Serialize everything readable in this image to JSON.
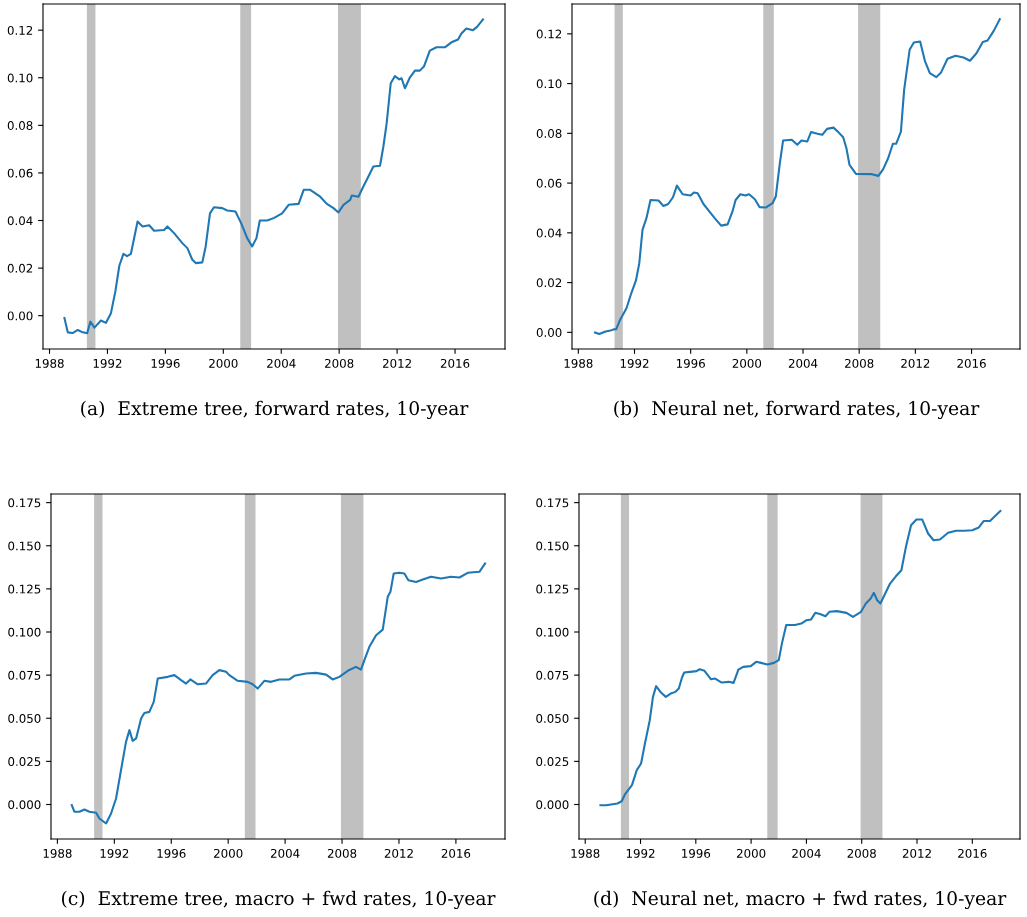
{
  "chart_data": [
    {
      "type": "line",
      "xlabel": "(a)  Extreme tree, forward rates, 10-year",
      "xlim": [
        1987.55,
        2019.45
      ],
      "xticks": [
        1988,
        1992,
        1996,
        2000,
        2004,
        2008,
        2012,
        2016
      ],
      "ylim": [
        -0.014,
        0.131
      ],
      "yticks": [
        {
          "value": 0,
          "label": "0.00"
        },
        {
          "value": 0.02,
          "label": "0.02"
        },
        {
          "value": 0.04,
          "label": "0.04"
        },
        {
          "value": 0.06,
          "label": "0.06"
        },
        {
          "value": 0.08,
          "label": "0.08"
        },
        {
          "value": 0.1,
          "label": "0.10"
        },
        {
          "value": 0.12,
          "label": "0.12"
        }
      ],
      "grid": false,
      "legend": false,
      "bands": [
        {
          "axis": "x",
          "from": 1990.58,
          "to": 1991.17,
          "color": "#c0c0c0"
        },
        {
          "axis": "x",
          "from": 2001.17,
          "to": 2001.92,
          "color": "#c0c0c0"
        },
        {
          "axis": "x",
          "from": 2007.92,
          "to": 2009.5,
          "color": "#c0c0c0"
        }
      ],
      "series": [
        {
          "color": "#1f77b4",
          "x": [
            1989.03,
            1989.26,
            1989.6,
            1989.95,
            1990.3,
            1990.6,
            1990.82,
            1991.1,
            1991.55,
            1991.9,
            1992.24,
            1992.54,
            1992.82,
            1993.1,
            1993.35,
            1993.62,
            1994.08,
            1994.42,
            1994.88,
            1995.22,
            1995.91,
            1996.14,
            1996.6,
            1997.17,
            1997.52,
            1997.86,
            1998.1,
            1998.55,
            1998.78,
            1999.08,
            1999.35,
            1999.93,
            2000.27,
            2000.84,
            2001.23,
            2001.65,
            2001.99,
            2002.29,
            2002.52,
            2003.02,
            2003.48,
            2004.06,
            2004.51,
            2005.2,
            2005.55,
            2006.0,
            2006.69,
            2007.15,
            2007.61,
            2007.95,
            2008.3,
            2008.76,
            2008.87,
            2009.33,
            2009.67,
            2010.02,
            2010.36,
            2010.82,
            2011.05,
            2011.28,
            2011.56,
            2011.85,
            2012.15,
            2012.31,
            2012.54,
            2012.89,
            2013.23,
            2013.57,
            2013.85,
            2014.26,
            2014.72,
            2015.3,
            2015.75,
            2016.21,
            2016.44,
            2016.78,
            2017.24,
            2017.52,
            2017.93
          ],
          "values": [
            -0.001,
            -0.007,
            -0.0073,
            -0.006,
            -0.007,
            -0.0074,
            -0.0025,
            -0.005,
            -0.002,
            -0.003,
            0.001,
            0.01,
            0.021,
            0.026,
            0.025,
            0.026,
            0.0396,
            0.0375,
            0.038,
            0.0357,
            0.036,
            0.0375,
            0.0347,
            0.0305,
            0.0284,
            0.0235,
            0.0221,
            0.0224,
            0.029,
            0.043,
            0.0456,
            0.0452,
            0.0442,
            0.0438,
            0.0389,
            0.0326,
            0.0291,
            0.0326,
            0.04,
            0.04,
            0.041,
            0.043,
            0.0466,
            0.047,
            0.0529,
            0.0529,
            0.05,
            0.047,
            0.0452,
            0.0434,
            0.0466,
            0.0487,
            0.0505,
            0.05,
            0.0543,
            0.0585,
            0.0627,
            0.063,
            0.071,
            0.0809,
            0.0977,
            0.1007,
            0.0993,
            0.0998,
            0.0956,
            0.1002,
            0.103,
            0.103,
            0.1047,
            0.1114,
            0.1128,
            0.1128,
            0.1149,
            0.1161,
            0.1186,
            0.1207,
            0.12,
            0.1214,
            0.1245
          ]
        }
      ]
    },
    {
      "type": "line",
      "xlabel": "(b)  Neural net, forward rates, 10-year",
      "xlim": [
        1987.55,
        2019.45
      ],
      "xticks": [
        1988,
        1992,
        1996,
        2000,
        2004,
        2008,
        2012,
        2016
      ],
      "ylim": [
        -0.0067,
        0.132
      ],
      "yticks": [
        {
          "value": 0,
          "label": "0.00"
        },
        {
          "value": 0.02,
          "label": "0.02"
        },
        {
          "value": 0.04,
          "label": "0.04"
        },
        {
          "value": 0.06,
          "label": "0.06"
        },
        {
          "value": 0.08,
          "label": "0.08"
        },
        {
          "value": 0.1,
          "label": "0.10"
        },
        {
          "value": 0.12,
          "label": "0.12"
        }
      ],
      "grid": false,
      "legend": false,
      "bands": [
        {
          "axis": "x",
          "from": 1990.58,
          "to": 1991.17,
          "color": "#c0c0c0"
        },
        {
          "axis": "x",
          "from": 2001.17,
          "to": 2001.92,
          "color": "#c0c0c0"
        },
        {
          "axis": "x",
          "from": 2007.92,
          "to": 2009.5,
          "color": "#c0c0c0"
        }
      ],
      "series": [
        {
          "color": "#1f77b4",
          "x": [
            1989.19,
            1989.49,
            1989.94,
            1990.29,
            1990.51,
            1990.7,
            1990.97,
            1991.43,
            1991.77,
            1992.11,
            1992.34,
            1992.57,
            1992.85,
            1993.14,
            1993.71,
            1994.06,
            1994.4,
            1994.74,
            1995.02,
            1995.43,
            1996.0,
            1996.23,
            1996.5,
            1996.91,
            1997.37,
            1997.71,
            1998.17,
            1998.63,
            1998.97,
            1999.2,
            1999.54,
            1999.89,
            2000.16,
            2000.57,
            2000.91,
            2001.37,
            2001.83,
            2002.06,
            2002.35,
            2002.58,
            2003.2,
            2003.59,
            2003.89,
            2004.3,
            2004.57,
            2005.03,
            2005.37,
            2005.71,
            2006.17,
            2006.51,
            2006.86,
            2007.09,
            2007.31,
            2007.77,
            2008.91,
            2009.37,
            2009.71,
            2010.06,
            2010.4,
            2010.63,
            2010.97,
            2011.2,
            2011.59,
            2011.89,
            2012.34,
            2012.69,
            2013.03,
            2013.49,
            2013.83,
            2014.29,
            2014.86,
            2015.43,
            2015.89,
            2016.35,
            2016.8,
            2017.14,
            2017.6,
            2018.01
          ],
          "values": [
            -0.0001,
            -0.0007,
            0.0003,
            0.0007,
            0.0012,
            0.0013,
            0.005,
            0.0097,
            0.0157,
            0.021,
            0.0278,
            0.0412,
            0.0459,
            0.0532,
            0.053,
            0.0508,
            0.0516,
            0.0543,
            0.059,
            0.0555,
            0.055,
            0.0562,
            0.0559,
            0.0516,
            0.0483,
            0.0459,
            0.0429,
            0.0434,
            0.0485,
            0.0532,
            0.0555,
            0.055,
            0.0555,
            0.0535,
            0.0503,
            0.0502,
            0.0519,
            0.0546,
            0.068,
            0.0771,
            0.0774,
            0.0754,
            0.0771,
            0.0767,
            0.0805,
            0.0798,
            0.0794,
            0.0818,
            0.0823,
            0.0805,
            0.0784,
            0.074,
            0.0673,
            0.0637,
            0.0636,
            0.0629,
            0.0656,
            0.07,
            0.0758,
            0.0758,
            0.0807,
            0.0975,
            0.1136,
            0.1165,
            0.1169,
            0.1089,
            0.1042,
            0.1026,
            0.1045,
            0.11,
            0.1112,
            0.1105,
            0.1092,
            0.1122,
            0.1167,
            0.1173,
            0.1214,
            0.1259
          ]
        }
      ]
    },
    {
      "type": "line",
      "xlabel": "(c)  Extreme tree, macro + fwd rates, 10-year",
      "xlim": [
        1987.55,
        2019.45
      ],
      "xticks": [
        1988,
        1992,
        1996,
        2000,
        2004,
        2008,
        2012,
        2016
      ],
      "ylim": [
        -0.02,
        0.18
      ],
      "yticks": [
        {
          "value": 0,
          "label": "0.000"
        },
        {
          "value": 0.025,
          "label": "0.025"
        },
        {
          "value": 0.05,
          "label": "0.050"
        },
        {
          "value": 0.075,
          "label": "0.075"
        },
        {
          "value": 0.1,
          "label": "0.100"
        },
        {
          "value": 0.125,
          "label": "0.125"
        },
        {
          "value": 0.15,
          "label": "0.150"
        },
        {
          "value": 0.175,
          "label": "0.175"
        }
      ],
      "grid": false,
      "legend": false,
      "bands": [
        {
          "axis": "x",
          "from": 1990.58,
          "to": 1991.17,
          "color": "#c0c0c0"
        },
        {
          "axis": "x",
          "from": 2001.17,
          "to": 2001.92,
          "color": "#c0c0c0"
        },
        {
          "axis": "x",
          "from": 2007.92,
          "to": 2009.5,
          "color": "#c0c0c0"
        }
      ],
      "series": [
        {
          "color": "#1f77b4",
          "x": [
            1989.01,
            1989.19,
            1989.55,
            1989.9,
            1990.25,
            1990.72,
            1990.95,
            1991.42,
            1991.77,
            1992.12,
            1992.47,
            1992.82,
            1993.06,
            1993.29,
            1993.53,
            1993.88,
            1994.11,
            1994.46,
            1994.77,
            1995.05,
            1995.75,
            1996.22,
            1996.69,
            1997.04,
            1997.34,
            1997.86,
            1998.44,
            1998.91,
            1999.38,
            1999.85,
            2000.08,
            2000.67,
            2001.37,
            2001.72,
            2002.07,
            2002.54,
            2003.01,
            2003.6,
            2004.3,
            2004.65,
            2005.47,
            2006.17,
            2006.88,
            2007.34,
            2007.81,
            2008.4,
            2008.98,
            2009.33,
            2009.57,
            2009.92,
            2010.39,
            2010.86,
            2011.21,
            2011.4,
            2011.63,
            2012.03,
            2012.38,
            2012.66,
            2013.2,
            2013.67,
            2014.25,
            2014.96,
            2015.66,
            2016.25,
            2016.83,
            2017.65,
            2018.05
          ],
          "values": [
            -0.0004,
            -0.0042,
            -0.0042,
            -0.0029,
            -0.0042,
            -0.0048,
            -0.0081,
            -0.011,
            -0.0052,
            0.0035,
            0.0199,
            0.0363,
            0.0431,
            0.0369,
            0.0383,
            0.0498,
            0.0531,
            0.0537,
            0.0595,
            0.073,
            0.074,
            0.075,
            0.0721,
            0.0701,
            0.0725,
            0.0697,
            0.0701,
            0.075,
            0.0779,
            0.0769,
            0.075,
            0.0717,
            0.0711,
            0.0697,
            0.0672,
            0.0717,
            0.0711,
            0.0725,
            0.0725,
            0.0746,
            0.0759,
            0.0763,
            0.0753,
            0.0725,
            0.074,
            0.0775,
            0.0798,
            0.0782,
            0.0837,
            0.0914,
            0.0981,
            0.1014,
            0.1204,
            0.1233,
            0.1339,
            0.1343,
            0.1339,
            0.13,
            0.129,
            0.1304,
            0.132,
            0.131,
            0.132,
            0.1316,
            0.1343,
            0.1349,
            0.1397
          ]
        }
      ]
    },
    {
      "type": "line",
      "xlabel": "(d)  Neural net, macro + fwd rates, 10-year",
      "xlim": [
        1987.55,
        2019.45
      ],
      "xticks": [
        1988,
        1992,
        1996,
        2000,
        2004,
        2008,
        2012,
        2016
      ],
      "ylim": [
        -0.02,
        0.18
      ],
      "yticks": [
        {
          "value": 0,
          "label": "0.000"
        },
        {
          "value": 0.025,
          "label": "0.025"
        },
        {
          "value": 0.05,
          "label": "0.050"
        },
        {
          "value": 0.075,
          "label": "0.075"
        },
        {
          "value": 0.1,
          "label": "0.100"
        },
        {
          "value": 0.125,
          "label": "0.125"
        },
        {
          "value": 0.15,
          "label": "0.150"
        },
        {
          "value": 0.175,
          "label": "0.175"
        }
      ],
      "grid": false,
      "legend": false,
      "bands": [
        {
          "axis": "x",
          "from": 1990.58,
          "to": 1991.17,
          "color": "#c0c0c0"
        },
        {
          "axis": "x",
          "from": 2001.17,
          "to": 2001.92,
          "color": "#c0c0c0"
        },
        {
          "axis": "x",
          "from": 2007.92,
          "to": 2009.5,
          "color": "#c0c0c0"
        }
      ],
      "series": [
        {
          "color": "#1f77b4",
          "x": [
            1989.1,
            1989.52,
            1989.98,
            1990.33,
            1990.64,
            1990.87,
            1991.38,
            1991.73,
            1992.04,
            1992.32,
            1992.67,
            1992.9,
            1993.13,
            1993.48,
            1993.83,
            1994.18,
            1994.53,
            1994.77,
            1995.0,
            1995.16,
            1995.58,
            1996.05,
            1996.28,
            1996.63,
            1997.1,
            1997.4,
            1997.87,
            1998.38,
            1998.73,
            1999.08,
            1999.43,
            1999.97,
            2000.37,
            2000.72,
            2001.18,
            2001.65,
            2002.0,
            2002.23,
            2002.54,
            2003.17,
            2003.63,
            2003.98,
            2004.33,
            2004.64,
            2005.03,
            2005.38,
            2005.66,
            2006.2,
            2006.9,
            2007.37,
            2007.95,
            2008.3,
            2008.65,
            2008.88,
            2009.12,
            2009.35,
            2009.7,
            2010.05,
            2010.47,
            2010.87,
            2011.22,
            2011.57,
            2011.96,
            2012.38,
            2012.8,
            2013.2,
            2013.66,
            2014.25,
            2014.83,
            2015.42,
            2016.0,
            2016.47,
            2016.82,
            2017.28,
            2017.63,
            2018.03
          ],
          "values": [
            -0.0004,
            -0.0004,
            0.0002,
            0.0006,
            0.0019,
            0.0058,
            0.0112,
            0.0199,
            0.0238,
            0.0354,
            0.0489,
            0.0624,
            0.0686,
            0.0649,
            0.0624,
            0.0643,
            0.0653,
            0.0672,
            0.0736,
            0.0765,
            0.0769,
            0.0773,
            0.0784,
            0.0775,
            0.0726,
            0.073,
            0.0707,
            0.0711,
            0.0705,
            0.0782,
            0.0798,
            0.0802,
            0.0827,
            0.0821,
            0.0811,
            0.0821,
            0.0837,
            0.0934,
            0.1041,
            0.1041,
            0.1049,
            0.1068,
            0.1072,
            0.1111,
            0.1103,
            0.1091,
            0.1117,
            0.1121,
            0.1111,
            0.1088,
            0.1117,
            0.1165,
            0.1194,
            0.1227,
            0.1184,
            0.1165,
            0.1223,
            0.1281,
            0.1323,
            0.1358,
            0.1502,
            0.1619,
            0.1652,
            0.1652,
            0.1571,
            0.1532,
            0.1536,
            0.1575,
            0.1587,
            0.1587,
            0.159,
            0.1606,
            0.1643,
            0.1644,
            0.1671,
            0.1702
          ]
        }
      ]
    }
  ]
}
